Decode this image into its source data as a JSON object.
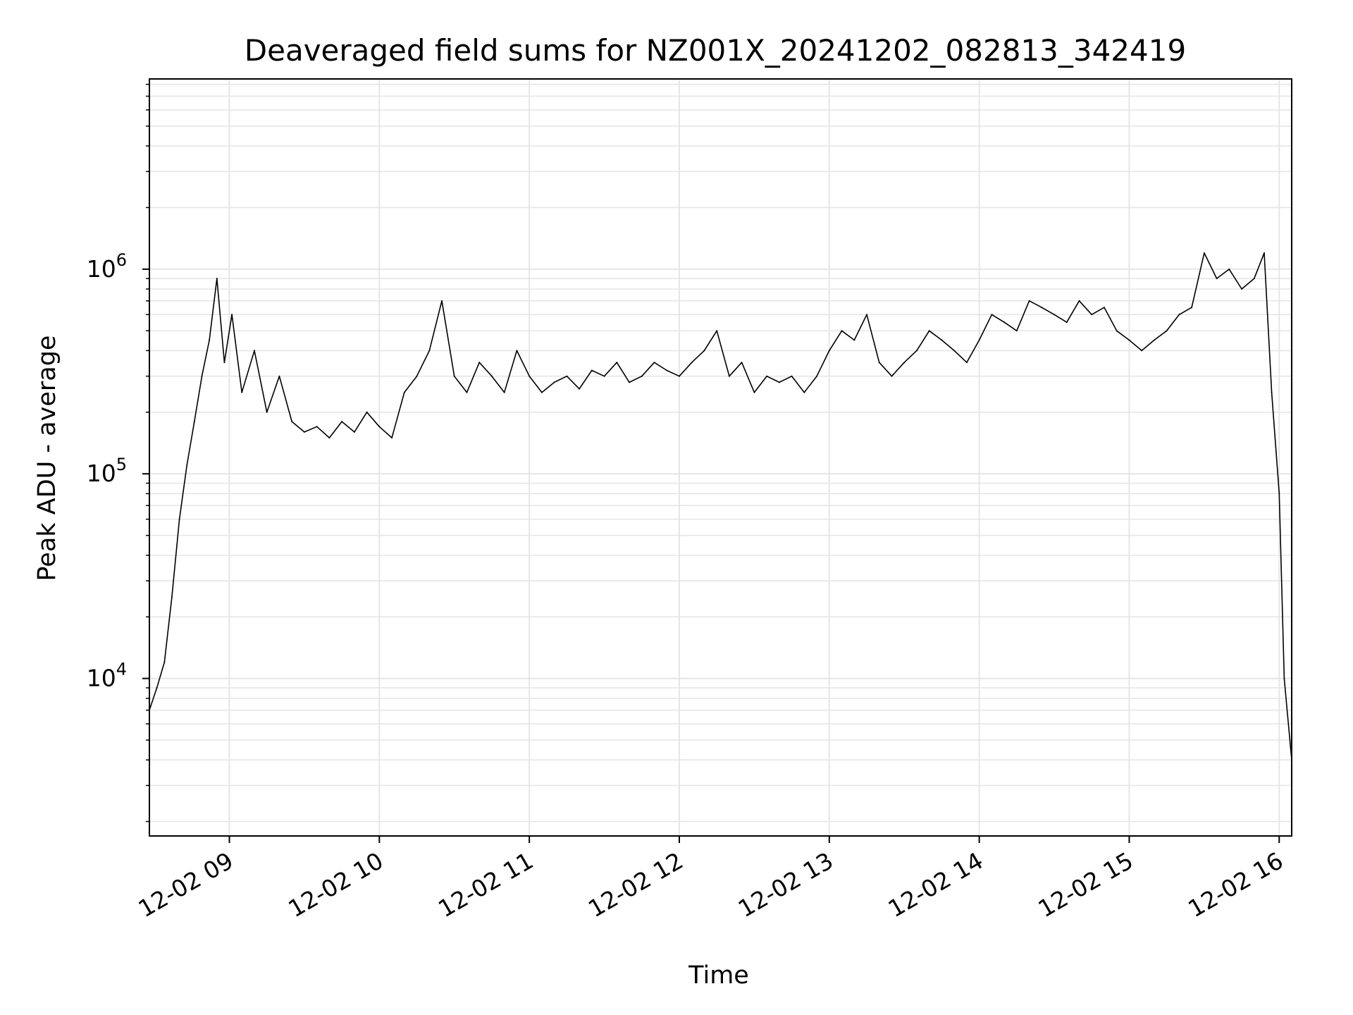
{
  "chart_data": {
    "type": "line",
    "title": "Deaveraged field sums for NZ001X_20241202_082813_342419",
    "xlabel": "Time",
    "ylabel": "Peak ADU - average",
    "yscale": "log",
    "ylim": [
      1700,
      8500000
    ],
    "xlim": [
      "2024-12-02 08:28",
      "2024-12-02 16:05"
    ],
    "x_ticks": [
      {
        "label": "12-02 09",
        "value": "2024-12-02 09:00"
      },
      {
        "label": "12-02 10",
        "value": "2024-12-02 10:00"
      },
      {
        "label": "12-02 11",
        "value": "2024-12-02 11:00"
      },
      {
        "label": "12-02 12",
        "value": "2024-12-02 12:00"
      },
      {
        "label": "12-02 13",
        "value": "2024-12-02 13:00"
      },
      {
        "label": "12-02 14",
        "value": "2024-12-02 14:00"
      },
      {
        "label": "12-02 15",
        "value": "2024-12-02 15:00"
      },
      {
        "label": "12-02 16",
        "value": "2024-12-02 16:00"
      }
    ],
    "y_ticks": [
      {
        "base": "10",
        "exp": "4",
        "value": 10000
      },
      {
        "base": "10",
        "exp": "5",
        "value": 100000
      },
      {
        "base": "10",
        "exp": "6",
        "value": 1000000
      }
    ],
    "grid": true,
    "line_color": "#000000",
    "grid_color": "#e6e6e6",
    "series": [
      {
        "x": [
          "2024-12-02 08:28",
          "2024-12-02 08:31",
          "2024-12-02 08:34",
          "2024-12-02 08:37",
          "2024-12-02 08:40",
          "2024-12-02 08:43",
          "2024-12-02 08:46",
          "2024-12-02 08:49",
          "2024-12-02 08:52",
          "2024-12-02 08:55",
          "2024-12-02 08:58",
          "2024-12-02 09:01",
          "2024-12-02 09:05",
          "2024-12-02 09:10",
          "2024-12-02 09:15",
          "2024-12-02 09:20",
          "2024-12-02 09:25",
          "2024-12-02 09:30",
          "2024-12-02 09:35",
          "2024-12-02 09:40",
          "2024-12-02 09:45",
          "2024-12-02 09:50",
          "2024-12-02 09:55",
          "2024-12-02 10:00",
          "2024-12-02 10:05",
          "2024-12-02 10:10",
          "2024-12-02 10:15",
          "2024-12-02 10:20",
          "2024-12-02 10:25",
          "2024-12-02 10:30",
          "2024-12-02 10:35",
          "2024-12-02 10:40",
          "2024-12-02 10:45",
          "2024-12-02 10:50",
          "2024-12-02 10:55",
          "2024-12-02 11:00",
          "2024-12-02 11:05",
          "2024-12-02 11:10",
          "2024-12-02 11:15",
          "2024-12-02 11:20",
          "2024-12-02 11:25",
          "2024-12-02 11:30",
          "2024-12-02 11:35",
          "2024-12-02 11:40",
          "2024-12-02 11:45",
          "2024-12-02 11:50",
          "2024-12-02 11:55",
          "2024-12-02 12:00",
          "2024-12-02 12:05",
          "2024-12-02 12:10",
          "2024-12-02 12:15",
          "2024-12-02 12:20",
          "2024-12-02 12:25",
          "2024-12-02 12:30",
          "2024-12-02 12:35",
          "2024-12-02 12:40",
          "2024-12-02 12:45",
          "2024-12-02 12:50",
          "2024-12-02 12:55",
          "2024-12-02 13:00",
          "2024-12-02 13:05",
          "2024-12-02 13:10",
          "2024-12-02 13:15",
          "2024-12-02 13:20",
          "2024-12-02 13:25",
          "2024-12-02 13:30",
          "2024-12-02 13:35",
          "2024-12-02 13:40",
          "2024-12-02 13:45",
          "2024-12-02 13:50",
          "2024-12-02 13:55",
          "2024-12-02 14:00",
          "2024-12-02 14:05",
          "2024-12-02 14:10",
          "2024-12-02 14:15",
          "2024-12-02 14:20",
          "2024-12-02 14:25",
          "2024-12-02 14:30",
          "2024-12-02 14:35",
          "2024-12-02 14:40",
          "2024-12-02 14:45",
          "2024-12-02 14:50",
          "2024-12-02 14:55",
          "2024-12-02 15:00",
          "2024-12-02 15:05",
          "2024-12-02 15:10",
          "2024-12-02 15:15",
          "2024-12-02 15:20",
          "2024-12-02 15:25",
          "2024-12-02 15:30",
          "2024-12-02 15:35",
          "2024-12-02 15:40",
          "2024-12-02 15:45",
          "2024-12-02 15:50",
          "2024-12-02 15:54",
          "2024-12-02 15:57",
          "2024-12-02 16:00",
          "2024-12-02 16:02",
          "2024-12-02 16:05"
        ],
        "y": [
          7000,
          9000,
          12000,
          25000,
          60000,
          110000,
          180000,
          300000,
          450000,
          900000,
          350000,
          600000,
          250000,
          400000,
          200000,
          300000,
          180000,
          160000,
          170000,
          150000,
          180000,
          160000,
          200000,
          170000,
          150000,
          250000,
          300000,
          400000,
          700000,
          300000,
          250000,
          350000,
          300000,
          250000,
          400000,
          300000,
          250000,
          280000,
          300000,
          260000,
          320000,
          300000,
          350000,
          280000,
          300000,
          350000,
          320000,
          300000,
          350000,
          400000,
          500000,
          300000,
          350000,
          250000,
          300000,
          280000,
          300000,
          250000,
          300000,
          400000,
          500000,
          450000,
          600000,
          350000,
          300000,
          350000,
          400000,
          500000,
          450000,
          400000,
          350000,
          450000,
          600000,
          550000,
          500000,
          700000,
          650000,
          600000,
          550000,
          700000,
          600000,
          650000,
          500000,
          450000,
          400000,
          450000,
          500000,
          600000,
          650000,
          1200000,
          900000,
          1000000,
          800000,
          900000,
          1200000,
          250000,
          80000,
          10000,
          4000
        ]
      }
    ]
  }
}
